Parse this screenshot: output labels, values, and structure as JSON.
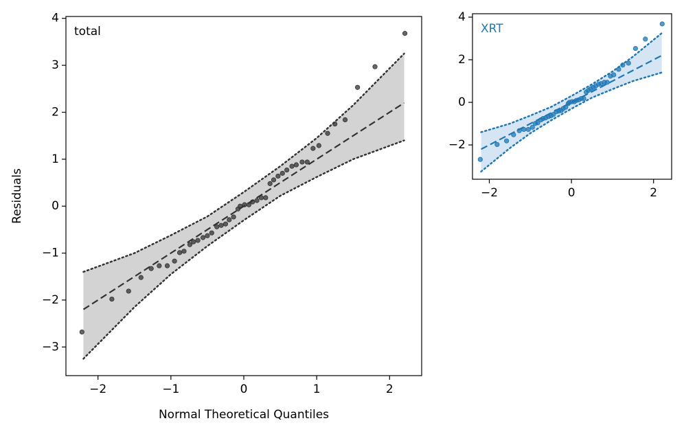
{
  "chart_data": [
    {
      "type": "scatter",
      "annotation": "total",
      "xlabel": "Normal Theoretical Quantiles",
      "ylabel": "Residuals",
      "color": "#333333",
      "band_color": "#d3d3d3",
      "xlim": [
        -2.44,
        2.44
      ],
      "ylim": [
        -3.61,
        4.04
      ],
      "xticks": [
        {
          "value": -2,
          "label": "−2"
        },
        {
          "value": -1,
          "label": "−1"
        },
        0,
        1,
        2
      ],
      "yticks": [
        {
          "value": -3,
          "label": "−3"
        },
        {
          "value": -2,
          "label": "−2"
        },
        {
          "value": -1,
          "label": "−1"
        },
        0,
        1,
        2,
        3,
        4
      ],
      "x": [
        -2.22,
        -1.81,
        -1.58,
        -1.41,
        -1.27,
        -1.16,
        -1.05,
        -0.95,
        -0.88,
        -0.82,
        -0.74,
        -0.69,
        -0.63,
        -0.56,
        -0.5,
        -0.44,
        -0.37,
        -0.31,
        -0.25,
        -0.2,
        -0.14,
        -0.08,
        -0.05,
        0.01,
        0.07,
        0.12,
        0.18,
        0.24,
        0.3,
        0.36,
        0.41,
        0.47,
        0.53,
        0.59,
        0.66,
        0.72,
        0.8,
        0.87,
        0.95,
        1.03,
        1.15,
        1.25,
        1.39,
        1.56,
        1.8,
        2.21
      ],
      "values": [
        -2.68,
        -1.98,
        -1.81,
        -1.52,
        -1.33,
        -1.27,
        -1.27,
        -1.17,
        -0.99,
        -0.96,
        -0.82,
        -0.76,
        -0.73,
        -0.67,
        -0.63,
        -0.57,
        -0.44,
        -0.41,
        -0.38,
        -0.29,
        -0.23,
        -0.06,
        0.0,
        0.03,
        0.03,
        0.09,
        0.12,
        0.18,
        0.18,
        0.48,
        0.56,
        0.64,
        0.7,
        0.77,
        0.85,
        0.88,
        0.94,
        0.94,
        1.23,
        1.29,
        1.55,
        1.75,
        1.84,
        2.53,
        2.97,
        3.68
      ],
      "line": {
        "x": [
          -2.2,
          2.2
        ],
        "values": [
          -2.2,
          2.2
        ]
      },
      "band": {
        "x": [
          -2.2,
          -1.5,
          -1,
          -0.5,
          0,
          0.5,
          1,
          1.5,
          2.2
        ],
        "upper": [
          -1.4,
          -1.0,
          -0.62,
          -0.22,
          0.3,
          0.85,
          1.45,
          2.15,
          3.25
        ],
        "lower": [
          -3.25,
          -2.15,
          -1.45,
          -0.85,
          -0.3,
          0.22,
          0.62,
          1.0,
          1.4
        ]
      }
    },
    {
      "type": "scatter",
      "annotation": "XRT",
      "color": "#1f77b4",
      "band_color": "#d5e5f4",
      "xlim": [
        -2.41,
        2.44
      ],
      "ylim": [
        -3.61,
        4.16
      ],
      "xticks": [
        {
          "value": -2,
          "label": "−2"
        },
        0,
        2
      ],
      "yticks": [
        {
          "value": -2,
          "label": "−2"
        },
        0,
        2,
        4
      ],
      "x": [
        -2.22,
        -1.81,
        -1.58,
        -1.41,
        -1.27,
        -1.16,
        -1.05,
        -0.95,
        -0.88,
        -0.82,
        -0.74,
        -0.69,
        -0.63,
        -0.56,
        -0.5,
        -0.44,
        -0.37,
        -0.31,
        -0.25,
        -0.2,
        -0.14,
        -0.08,
        -0.05,
        0.01,
        0.07,
        0.12,
        0.18,
        0.24,
        0.3,
        0.36,
        0.41,
        0.47,
        0.53,
        0.59,
        0.66,
        0.72,
        0.8,
        0.87,
        0.95,
        1.03,
        1.15,
        1.25,
        1.39,
        1.56,
        1.8,
        2.21
      ],
      "values": [
        -2.68,
        -1.98,
        -1.81,
        -1.52,
        -1.33,
        -1.27,
        -1.27,
        -1.17,
        -0.99,
        -0.96,
        -0.82,
        -0.76,
        -0.73,
        -0.67,
        -0.63,
        -0.57,
        -0.44,
        -0.41,
        -0.38,
        -0.29,
        -0.23,
        -0.06,
        0.0,
        0.03,
        0.03,
        0.09,
        0.12,
        0.18,
        0.18,
        0.48,
        0.56,
        0.64,
        0.7,
        0.77,
        0.85,
        0.88,
        0.94,
        0.94,
        1.23,
        1.29,
        1.55,
        1.75,
        1.84,
        2.53,
        2.97,
        3.68
      ],
      "line": {
        "x": [
          -2.2,
          2.2
        ],
        "values": [
          -2.2,
          2.2
        ]
      },
      "band": {
        "x": [
          -2.2,
          -1.5,
          -1,
          -0.5,
          0,
          0.5,
          1,
          1.5,
          2.2
        ],
        "upper": [
          -1.4,
          -1.0,
          -0.62,
          -0.22,
          0.3,
          0.85,
          1.45,
          2.15,
          3.25
        ],
        "lower": [
          -3.25,
          -2.15,
          -1.45,
          -0.85,
          -0.3,
          0.22,
          0.62,
          1.0,
          1.4
        ]
      }
    }
  ]
}
